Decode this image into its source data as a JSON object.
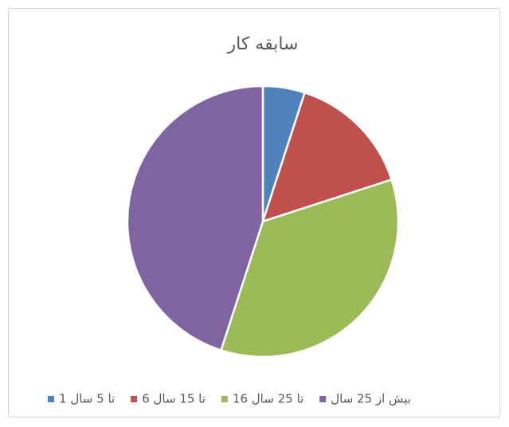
{
  "chart_data": {
    "type": "pie",
    "title": "سابقه کار",
    "categories": [
      "1 تا 5 سال",
      "6 تا 15 سال",
      "16 تا 25 سال",
      "بیش از 25 سال"
    ],
    "values": [
      5,
      15,
      35,
      45
    ],
    "colors": [
      "#4f81bd",
      "#c0504d",
      "#9bbb59",
      "#8064a2"
    ],
    "legend": "bottom"
  }
}
